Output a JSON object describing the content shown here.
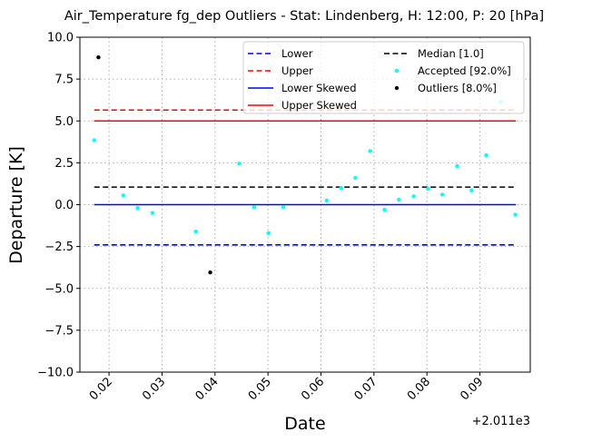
{
  "chart_data": {
    "type": "scatter",
    "title": "Air_Temperature fg_dep Outliers - Stat: Lindenberg, H: 12:00, P: 20 [hPa]",
    "xlabel": "Date",
    "ylabel": "Departure [K]",
    "xlim": [
      0.0145,
      0.0995
    ],
    "ylim": [
      -10.0,
      10.0
    ],
    "x_offset_label": "+2.011e3",
    "x_ticks": [
      0.02,
      0.03,
      0.04,
      0.05,
      0.06,
      0.07,
      0.08,
      0.09
    ],
    "x_tick_labels": [
      "0.02",
      "0.03",
      "0.04",
      "0.05",
      "0.06",
      "0.07",
      "0.08",
      "0.09"
    ],
    "y_ticks": [
      10.0,
      7.5,
      5.0,
      2.5,
      0.0,
      -2.5,
      -5.0,
      -7.5,
      -10.0
    ],
    "y_tick_labels": [
      "10.0",
      "7.5",
      "5.0",
      "2.5",
      "0.0",
      "−2.5",
      "−5.0",
      "−7.5",
      "−10.0"
    ],
    "grid": true,
    "legend_position": "top-right",
    "lines": [
      {
        "name": "Lower",
        "y": -2.4,
        "color": "#0000ff",
        "style": "dashed"
      },
      {
        "name": "Upper",
        "y": 5.65,
        "color": "#ff0000",
        "style": "dashed"
      },
      {
        "name": "Lower Skewed",
        "y": 0.0,
        "color": "#0000ff",
        "style": "solid"
      },
      {
        "name": "Upper Skewed",
        "y": 5.0,
        "color": "#ff0000",
        "style": "solid"
      },
      {
        "name": "Median [1.0]",
        "y": 1.05,
        "color": "#000000",
        "style": "dashed"
      }
    ],
    "line_x_range": [
      0.0172,
      0.0968
    ],
    "series": [
      {
        "name": "Accepted [92.0%]",
        "color": "#00ffff",
        "points": [
          [
            0.0172,
            3.85
          ],
          [
            0.0227,
            0.55
          ],
          [
            0.0254,
            -0.2
          ],
          [
            0.0282,
            -0.5
          ],
          [
            0.0364,
            -1.6
          ],
          [
            0.0446,
            2.45
          ],
          [
            0.0474,
            -0.15
          ],
          [
            0.0501,
            -1.7
          ],
          [
            0.0529,
            -0.15
          ],
          [
            0.0611,
            0.25
          ],
          [
            0.0638,
            1.0
          ],
          [
            0.0665,
            1.6
          ],
          [
            0.0693,
            3.2
          ],
          [
            0.072,
            -0.3
          ],
          [
            0.0747,
            0.3
          ],
          [
            0.0775,
            0.5
          ],
          [
            0.0802,
            0.95
          ],
          [
            0.0829,
            0.6
          ],
          [
            0.0857,
            2.3
          ],
          [
            0.0884,
            0.85
          ],
          [
            0.0912,
            2.95
          ],
          [
            0.0939,
            6.15
          ],
          [
            0.0967,
            -0.6
          ]
        ]
      },
      {
        "name": "Outliers [8.0%]",
        "color": "#000000",
        "points": [
          [
            0.0391,
            -4.05
          ],
          [
            0.018,
            8.8
          ]
        ]
      }
    ]
  }
}
